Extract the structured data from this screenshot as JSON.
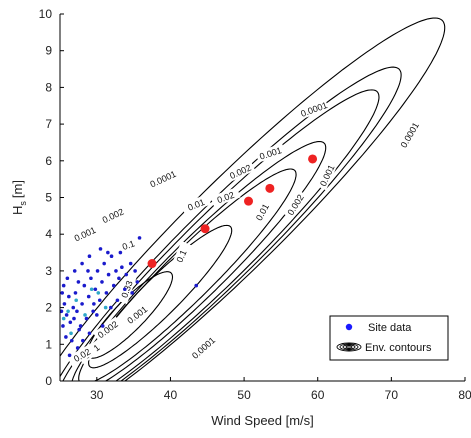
{
  "chart_data": {
    "type": "scatter",
    "xlabel": "Wind Speed [m/s]",
    "ylabel": "H",
    "ylabel_sub": "s",
    "ylabel_unit": "[m]",
    "xlim": [
      25,
      80
    ],
    "ylim": [
      0,
      10
    ],
    "xticks": [
      30,
      40,
      50,
      60,
      70,
      80
    ],
    "yticks": [
      0,
      1,
      2,
      3,
      4,
      5,
      6,
      7,
      8,
      9,
      10
    ],
    "grid": false,
    "legend_position": "bottom-right",
    "legend": [
      {
        "label": "Site data",
        "marker": "dot",
        "color": "#1a1aff"
      },
      {
        "label": "Env. contours",
        "marker": "contour",
        "color": "#000000"
      }
    ],
    "colors": {
      "site_data": "#1a1acc",
      "site_data_alt": "#2fa8c8",
      "design_points": "#ee2222",
      "contour": "#000000"
    },
    "contours": [
      {
        "level": "0.0001",
        "x_center": 49.0,
        "y_center": 4.3,
        "a": 33.5,
        "b": 0.48,
        "angle_deg": 32.9
      },
      {
        "level": "0.001",
        "x_center": 47.3,
        "y_center": 3.8,
        "a": 28.5,
        "b": 0.4,
        "angle_deg": 32.9
      },
      {
        "level": "0.002",
        "x_center": 46.4,
        "y_center": 3.6,
        "a": 26.0,
        "b": 0.36,
        "angle_deg": 32.9
      },
      {
        "level": "0.01",
        "x_center": 43.8,
        "y_center": 3.1,
        "a": 20.5,
        "b": 0.3,
        "angle_deg": 32.9
      },
      {
        "level": "0.02",
        "x_center": 42.3,
        "y_center": 2.85,
        "a": 17.5,
        "b": 0.26,
        "angle_deg": 32.9
      },
      {
        "level": "0.1",
        "x_center": 38.6,
        "y_center": 2.3,
        "a": 11.5,
        "b": 0.2,
        "angle_deg": 32.9
      },
      {
        "level": "0.33",
        "x_center": 34.5,
        "y_center": 1.8,
        "a": 6.8,
        "b": 0.16,
        "angle_deg": 32.9
      }
    ],
    "contour_labels": [
      {
        "text": "0.0001",
        "x": 59.5,
        "y": 7.4,
        "angle": -20
      },
      {
        "text": "0.0001",
        "x": 72.5,
        "y": 6.7,
        "angle": -60
      },
      {
        "text": "0.0001",
        "x": 39.0,
        "y": 5.5,
        "angle": -25
      },
      {
        "text": "0.0001",
        "x": 44.5,
        "y": 0.9,
        "angle": -42
      },
      {
        "text": "0.001",
        "x": 53.6,
        "y": 6.2,
        "angle": -18
      },
      {
        "text": "0.001",
        "x": 61.3,
        "y": 5.6,
        "angle": -65
      },
      {
        "text": "0.001",
        "x": 28.4,
        "y": 4.0,
        "angle": -25
      },
      {
        "text": "0.001",
        "x": 35.5,
        "y": 1.8,
        "angle": -38
      },
      {
        "text": "0.002",
        "x": 49.5,
        "y": 5.7,
        "angle": -25
      },
      {
        "text": "0.002",
        "x": 32.2,
        "y": 4.5,
        "angle": -25
      },
      {
        "text": "0.002",
        "x": 57.0,
        "y": 4.8,
        "angle": -58
      },
      {
        "text": "0.002",
        "x": 31.5,
        "y": 1.4,
        "angle": -36
      },
      {
        "text": "0.01",
        "x": 43.5,
        "y": 4.8,
        "angle": -22
      },
      {
        "text": "0.01",
        "x": 52.5,
        "y": 4.6,
        "angle": -62
      },
      {
        "text": "0.01",
        "x": 29.3,
        "y": 0.8,
        "angle": -38
      },
      {
        "text": "0.02",
        "x": 47.5,
        "y": 5.0,
        "angle": -20
      },
      {
        "text": "0.02",
        "x": 28.0,
        "y": 0.7,
        "angle": -30
      },
      {
        "text": "0.1",
        "x": 34.3,
        "y": 3.7,
        "angle": -20
      },
      {
        "text": "0.1",
        "x": 41.5,
        "y": 3.4,
        "angle": -66
      },
      {
        "text": "0.33",
        "x": 34.1,
        "y": 2.5,
        "angle": -70
      }
    ],
    "design_points": [
      {
        "x": 37.5,
        "y": 3.2
      },
      {
        "x": 44.7,
        "y": 4.15
      },
      {
        "x": 50.6,
        "y": 4.9
      },
      {
        "x": 53.5,
        "y": 5.25
      },
      {
        "x": 59.3,
        "y": 6.05
      }
    ],
    "site_data": [
      {
        "x": 25.3,
        "y": 2.4
      },
      {
        "x": 25.6,
        "y": 2.1
      },
      {
        "x": 25.9,
        "y": 1.8
      },
      {
        "x": 26.2,
        "y": 2.3
      },
      {
        "x": 25.4,
        "y": 1.5
      },
      {
        "x": 25.8,
        "y": 1.2
      },
      {
        "x": 26.4,
        "y": 1.6
      },
      {
        "x": 26.8,
        "y": 2.0
      },
      {
        "x": 27.1,
        "y": 2.4
      },
      {
        "x": 27.3,
        "y": 1.9
      },
      {
        "x": 27.6,
        "y": 1.4
      },
      {
        "x": 28.0,
        "y": 2.1
      },
      {
        "x": 28.3,
        "y": 2.6
      },
      {
        "x": 28.6,
        "y": 1.7
      },
      {
        "x": 28.9,
        "y": 2.3
      },
      {
        "x": 29.2,
        "y": 2.8
      },
      {
        "x": 29.5,
        "y": 1.9
      },
      {
        "x": 29.8,
        "y": 2.5
      },
      {
        "x": 30.1,
        "y": 3.0
      },
      {
        "x": 30.4,
        "y": 2.2
      },
      {
        "x": 30.7,
        "y": 2.7
      },
      {
        "x": 31.0,
        "y": 3.2
      },
      {
        "x": 31.3,
        "y": 2.4
      },
      {
        "x": 31.6,
        "y": 2.9
      },
      {
        "x": 32.0,
        "y": 3.4
      },
      {
        "x": 32.3,
        "y": 2.6
      },
      {
        "x": 32.6,
        "y": 3.0
      },
      {
        "x": 33.0,
        "y": 2.8
      },
      {
        "x": 33.4,
        "y": 3.1
      },
      {
        "x": 34.0,
        "y": 2.9
      },
      {
        "x": 34.6,
        "y": 3.2
      },
      {
        "x": 35.2,
        "y": 3.0
      },
      {
        "x": 27.0,
        "y": 3.0
      },
      {
        "x": 28.0,
        "y": 3.2
      },
      {
        "x": 29.0,
        "y": 3.4
      },
      {
        "x": 30.5,
        "y": 3.6
      },
      {
        "x": 31.5,
        "y": 3.5
      },
      {
        "x": 26.0,
        "y": 2.8
      },
      {
        "x": 25.5,
        "y": 2.6
      },
      {
        "x": 26.6,
        "y": 1.1
      },
      {
        "x": 27.4,
        "y": 0.9
      },
      {
        "x": 28.1,
        "y": 1.1
      },
      {
        "x": 27.8,
        "y": 1.5
      },
      {
        "x": 26.9,
        "y": 1.7
      },
      {
        "x": 29.0,
        "y": 1.3
      },
      {
        "x": 30.0,
        "y": 1.8
      },
      {
        "x": 30.8,
        "y": 1.5
      },
      {
        "x": 32.8,
        "y": 2.2
      },
      {
        "x": 33.8,
        "y": 2.5
      },
      {
        "x": 35.5,
        "y": 2.7
      },
      {
        "x": 35.8,
        "y": 3.9
      },
      {
        "x": 43.5,
        "y": 2.6
      },
      {
        "x": 26.3,
        "y": 0.7
      },
      {
        "x": 25.2,
        "y": 1.9
      },
      {
        "x": 27.5,
        "y": 2.7
      },
      {
        "x": 28.8,
        "y": 3.0
      },
      {
        "x": 29.6,
        "y": 2.1
      },
      {
        "x": 31.9,
        "y": 2.0
      },
      {
        "x": 33.2,
        "y": 3.5
      },
      {
        "x": 34.8,
        "y": 2.4
      }
    ],
    "site_data_alt": [
      {
        "x": 25.5,
        "y": 1.7
      },
      {
        "x": 26.5,
        "y": 1.3
      },
      {
        "x": 27.2,
        "y": 2.2
      },
      {
        "x": 28.4,
        "y": 1.8
      },
      {
        "x": 29.3,
        "y": 2.5
      },
      {
        "x": 30.2,
        "y": 2.4
      },
      {
        "x": 26.1,
        "y": 1.9
      },
      {
        "x": 31.2,
        "y": 2.0
      }
    ]
  }
}
